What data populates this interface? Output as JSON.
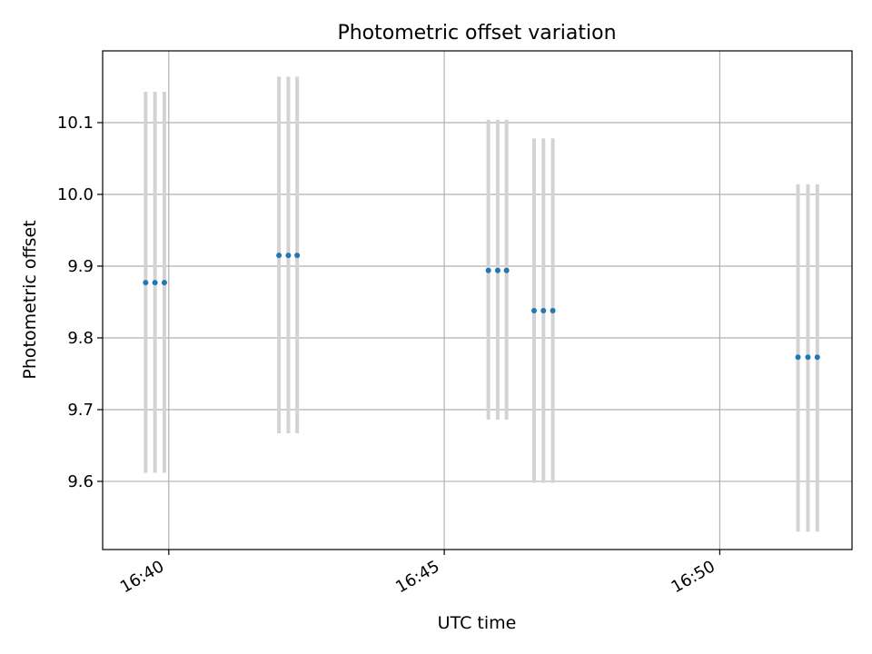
{
  "chart_data": {
    "type": "scatter",
    "title": "Photometric offset variation",
    "xlabel": "UTC time",
    "ylabel": "Photometric offset",
    "x_tick_labels": [
      "16:40",
      "16:45",
      "16:50"
    ],
    "x_ticks_minutes": [
      40,
      45,
      50
    ],
    "xlim_minutes": [
      38.8,
      52.4
    ],
    "y_ticks": [
      9.6,
      9.7,
      9.8,
      9.9,
      10.0,
      10.1
    ],
    "ylim": [
      9.505,
      10.2
    ],
    "grid": true,
    "x_unit_note": "x values are minutes past 16:00 UTC",
    "points": [
      {
        "x": 39.58,
        "y": 9.877,
        "err_low": 9.612,
        "err_high": 10.143
      },
      {
        "x": 39.75,
        "y": 9.877,
        "err_low": 9.612,
        "err_high": 10.143
      },
      {
        "x": 39.92,
        "y": 9.877,
        "err_low": 9.612,
        "err_high": 10.143
      },
      {
        "x": 42.0,
        "y": 9.915,
        "err_low": 9.667,
        "err_high": 10.164
      },
      {
        "x": 42.17,
        "y": 9.915,
        "err_low": 9.667,
        "err_high": 10.164
      },
      {
        "x": 42.33,
        "y": 9.915,
        "err_low": 9.667,
        "err_high": 10.164
      },
      {
        "x": 45.8,
        "y": 9.894,
        "err_low": 9.686,
        "err_high": 10.104
      },
      {
        "x": 45.97,
        "y": 9.894,
        "err_low": 9.686,
        "err_high": 10.104
      },
      {
        "x": 46.13,
        "y": 9.894,
        "err_low": 9.686,
        "err_high": 10.104
      },
      {
        "x": 46.63,
        "y": 9.838,
        "err_low": 9.598,
        "err_high": 10.078
      },
      {
        "x": 46.8,
        "y": 9.838,
        "err_low": 9.598,
        "err_high": 10.078
      },
      {
        "x": 46.97,
        "y": 9.838,
        "err_low": 9.598,
        "err_high": 10.078
      },
      {
        "x": 51.42,
        "y": 9.773,
        "err_low": 9.53,
        "err_high": 10.014
      },
      {
        "x": 51.6,
        "y": 9.773,
        "err_low": 9.53,
        "err_high": 10.014
      },
      {
        "x": 51.77,
        "y": 9.773,
        "err_low": 9.53,
        "err_high": 10.014
      }
    ],
    "colors": {
      "point": "#1f77b4",
      "errorbar": "#d3d3d3",
      "grid": "#b0b0b0",
      "axes": "#000000"
    }
  }
}
